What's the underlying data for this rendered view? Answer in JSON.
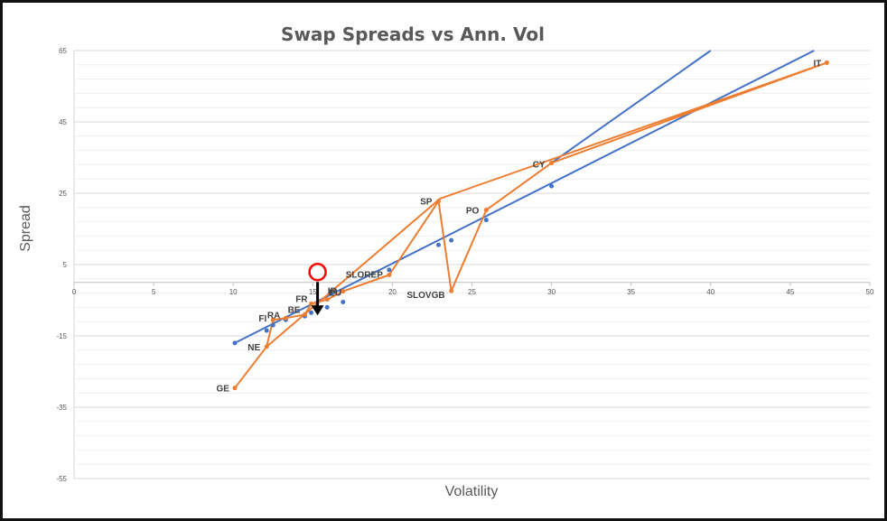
{
  "chart_data": {
    "type": "scatter",
    "title": "Swap Spreads vs Ann. Vol",
    "xlabel": "Volatility",
    "ylabel": "Spread",
    "xlim": [
      0,
      50
    ],
    "ylim": [
      -55,
      65
    ],
    "x_ticks": [
      "0",
      "5",
      "10",
      "15",
      "20",
      "25",
      "30",
      "35",
      "40",
      "45",
      "50"
    ],
    "y_ticks": [
      "65",
      "45",
      "25",
      "5",
      "-15",
      "-35",
      "-55"
    ],
    "x_tick_values": [
      0,
      5,
      10,
      15,
      20,
      25,
      30,
      35,
      40,
      45,
      50
    ],
    "y_tick_values": [
      65,
      45,
      25,
      5,
      -15,
      -35,
      -55
    ],
    "y_minor_step": 4,
    "x_axis_at_y": 0,
    "grid": true,
    "colors": {
      "observed": "#ED7D31",
      "fitted": "#4472C4",
      "marker": "#FF0000",
      "arrow": "#000000"
    },
    "series": [
      {
        "connected": true,
        "x": [
          10.1,
          12.1,
          12.5,
          13.3,
          14.5,
          14.9,
          15.9,
          16.9,
          19.8,
          22.9,
          23.7,
          25.9,
          30.0,
          47.3,
          23.0,
          12.1,
          10.1
        ],
        "y": [
          -29.6,
          -18.0,
          -10.5,
          -10.0,
          -9.0,
          -6.0,
          -4.8,
          -2.5,
          2.1,
          22.8,
          -2.4,
          20.3,
          33.5,
          61.6,
          23.5,
          -18.0,
          -29.6
        ],
        "labels": [
          "GE",
          "NE",
          "FI",
          "RA",
          "BE",
          "FR",
          "EU",
          "IR",
          "SLOREP",
          "SP",
          "SLOVGB",
          "PO",
          "CY",
          "IT",
          "",
          "",
          ""
        ]
      },
      {
        "connected": false,
        "x": [
          10.1,
          12.1,
          12.5,
          13.3,
          14.5,
          14.9,
          15.9,
          16.9,
          19.8,
          22.9,
          23.7,
          25.9,
          30.0
        ],
        "y": [
          -17.0,
          -13.5,
          -12.0,
          -10.5,
          -9.5,
          -8.5,
          -7.0,
          -5.5,
          3.5,
          10.5,
          11.8,
          17.5,
          27.0
        ]
      }
    ],
    "trendlines": [
      {
        "x": [
          10.1,
          46.5
        ],
        "y": [
          -17.0,
          65.0
        ]
      },
      {
        "x": [
          30.0,
          40.0
        ],
        "y": [
          33.5,
          65.0
        ]
      }
    ],
    "highlight": {
      "label": "IR",
      "x": 15.3,
      "y": 2.9,
      "arrow_to": [
        -9.0
      ]
    }
  }
}
